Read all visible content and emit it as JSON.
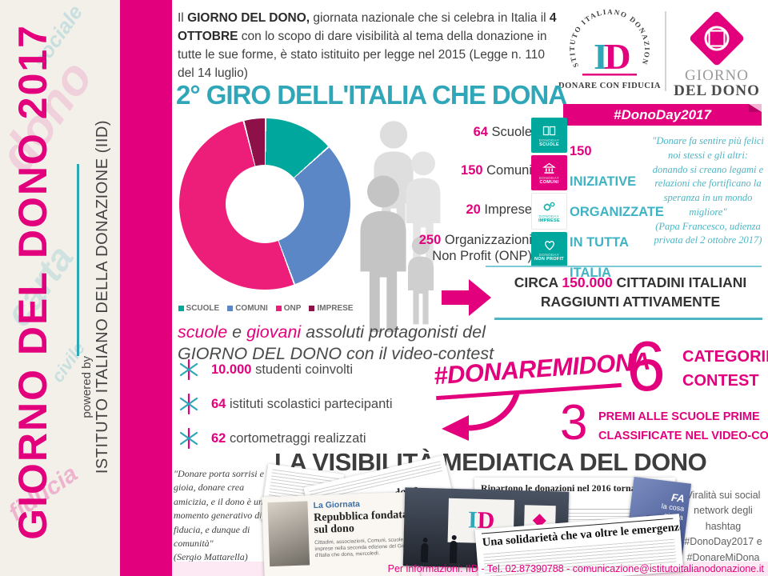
{
  "colors": {
    "magenta": "#e3007d",
    "teal": "#00a79d",
    "teal_text": "#2fa7b8",
    "blue": "#5b87c7",
    "maroon": "#8e1048"
  },
  "sidebar": {
    "title": "GIORNO DEL DONO 2017",
    "powered_by": "powered by",
    "organization": "ISTITUTO ITALIANO DELLA DONAZIONE (IID)",
    "watermarks": [
      "dono",
      "carta",
      "sociale",
      "fiducia",
      "civile"
    ]
  },
  "intro": {
    "s1": "Il ",
    "b1": "GIORNO DEL DONO,",
    "s2": " giornata nazionale che si celebra in Italia il ",
    "b2": "4 OTTOBRE",
    "s3": " con lo scopo di dare visibilità al tema della donazione in tutte le sue forme, è stato istituito per legge nel 2015 (Legge n. 110 del 14 luglio)"
  },
  "logos": {
    "iid": {
      "arc_text": "ISTITUTO ITALIANO DONAZIONE",
      "monogram_i": "I",
      "monogram_d": "D",
      "tagline": "DONARE CON FIDUCIA"
    },
    "giorno_del_dono": {
      "line1": "GIORNO",
      "line2": "DEL DONO"
    },
    "ribbon": "#DonoDay2017"
  },
  "headings": {
    "giro": "2° GIRO DELL'ITALIA CHE DONA",
    "visibilita": "LA VISIBILITÀ MEDIATICA DEL DONO"
  },
  "chart_data": {
    "type": "pie",
    "donut": true,
    "title": "",
    "categories": [
      "SCUOLE",
      "COMUNI",
      "ONP",
      "IMPRESE"
    ],
    "values": [
      64,
      150,
      250,
      20
    ],
    "colors": [
      "#00a79d",
      "#5b87c7",
      "#ed1e79",
      "#8e1048"
    ],
    "legend_position": "bottom"
  },
  "stats": {
    "items": [
      {
        "value": "64",
        "label": "Scuole"
      },
      {
        "value": "150",
        "label": "Comuni"
      },
      {
        "value": "20",
        "label": "Imprese"
      },
      {
        "value": "250",
        "label": "Organizzazioni Non Profit (ONP)"
      }
    ]
  },
  "badges": [
    {
      "icon": "book-icon",
      "line1": "DONODAY",
      "line2": "SCUOLE"
    },
    {
      "icon": "bank-icon",
      "line1": "DONODAY",
      "line2": "COMUNI"
    },
    {
      "icon": "gears-icon",
      "line1": "DONODAY",
      "line2": "IMPRESE"
    },
    {
      "icon": "heart-icon",
      "line1": "DONODAY",
      "line2": "NON PROFIT"
    }
  ],
  "initiatives": {
    "number": "150",
    "line1": " INIZIATIVE",
    "line2": "ORGANIZZATE",
    "line3": "IN TUTTA ITALIA"
  },
  "quote_right": {
    "text": "\"Donare fa sentire più felici noi stessi e gli altri: donando si creano legami e relazioni che fortificano la speranza in un mondo migliore\"",
    "attribution": "(Papa Francesco, udienza privata del 2 ottobre 2017)"
  },
  "reached": {
    "prefix": "CIRCA ",
    "number": "150.000",
    "suffix": " CITTADINI ITALIANI",
    "line2": "RAGGIUNTI ATTIVAMENTE"
  },
  "protagonists": {
    "w1": "scuole",
    "mid": " e ",
    "w2": "giovani",
    "rest": " assoluti protagonisti del",
    "line2": "GIORNO DEL DONO con il video-contest"
  },
  "bullets": [
    {
      "value": "10.000",
      "label": "studenti coinvolti"
    },
    {
      "value": "64",
      "label": "istituti scolastici partecipanti"
    },
    {
      "value": "62",
      "label": "cortometraggi realizzati"
    }
  ],
  "contest": {
    "hashtag": "#DONAREMIDONA",
    "categories_number": "6",
    "categories_line1": "CATEGORIE",
    "categories_line2": "CONTEST",
    "prizes_number": "3",
    "prizes_line1": "PREMI ALLE SCUOLE PRIME",
    "prizes_line2": "CLASSIFICATE NEL VIDEO-CONTEST"
  },
  "quote_left": {
    "text": "\"Donare porta sorrisi e gioia, donare crea amicizia, e il dono è un momento generativo di fiducia, e dunque di comunità\"",
    "attribution": "(Sergio Mattarella)"
  },
  "press": {
    "giornata": {
      "kicker": "La Giornata",
      "headline": "Repubblica fondata sul dono",
      "body": "Cittadini, associazioni, Comuni, scuole e imprese nella seconda edizione del Giro d'Italia che dona, mercoledì."
    },
    "piano": {
      "headline": "«Il nostro piano dono ricev... da co..."
    },
    "ripartono": {
      "headline": "Ripartono le donazioni nel 2016 tornate ai livelli pre crisi"
    },
    "solidarieta": {
      "headline": "Una solidarietà che va oltre le emergenze"
    },
    "tv": {
      "line1": "FA",
      "line2": "la cosa",
      "line3": "giusta"
    },
    "stage": {
      "screen_i": "I",
      "screen_d": "D"
    }
  },
  "social": {
    "text": "Viralità sui social network degli hashtag #DonoDay2017 e #DonareMiDona"
  },
  "footer": {
    "contact": "Per informazioni: IID - Tel. 02.87390788 - comunicazione@istitutoitalianodonazione.it"
  }
}
